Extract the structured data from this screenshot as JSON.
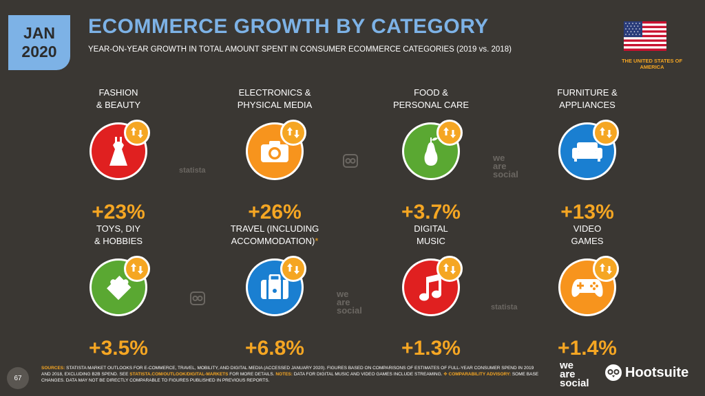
{
  "header": {
    "month": "JAN",
    "year": "2020",
    "title": "ECOMMERCE GROWTH BY CATEGORY",
    "subtitle": "YEAR-ON-YEAR GROWTH IN TOTAL AMOUNT SPENT IN CONSUMER ECOMMERCE CATEGORIES (2019 vs. 2018)",
    "country_line1": "THE UNITED STATES OF",
    "country_line2": "AMERICA"
  },
  "categories": [
    {
      "line1": "FASHION",
      "line2": "& BEAUTY",
      "value": "+23%",
      "icon": "dress-icon",
      "color": "#e02020"
    },
    {
      "line1": "ELECTRONICS &",
      "line2": "PHYSICAL MEDIA",
      "value": "+26%",
      "icon": "camera-icon",
      "color": "#f7941d"
    },
    {
      "line1": "FOOD &",
      "line2": "PERSONAL CARE",
      "value": "+3.7%",
      "icon": "pear-icon",
      "color": "#5aa832"
    },
    {
      "line1": "FURNITURE &",
      "line2": "APPLIANCES",
      "value": "+13%",
      "icon": "sofa-icon",
      "color": "#1a7fd1"
    },
    {
      "line1": "TOYS, DIY",
      "line2": "& HOBBIES",
      "value": "+3.5%",
      "icon": "puzzle-icon",
      "color": "#5aa832"
    },
    {
      "line1": "TRAVEL (INCLUDING",
      "line2": "ACCOMMODATION)",
      "star": "*",
      "value": "+6.8%",
      "icon": "luggage-icon",
      "color": "#1a7fd1"
    },
    {
      "line1": "DIGITAL",
      "line2": "MUSIC",
      "value": "+1.3%",
      "icon": "music-note-icon",
      "color": "#e02020"
    },
    {
      "line1": "VIDEO",
      "line2": "GAMES",
      "value": "+1.4%",
      "icon": "gamepad-icon",
      "color": "#f7941d"
    }
  ],
  "watermarks": {
    "statista": "statista",
    "we": "we",
    "are": "are",
    "social": "social"
  },
  "footer": {
    "page": "67",
    "sources_label": "SOURCES:",
    "sources_text": " STATISTA MARKET OUTLOOKS FOR E-COMMERCE, TRAVEL, MOBILITY, AND DIGITAL MEDIA (ACCESSED JANUARY 2020). FIGURES BASED ON COMPARISONS OF ESTIMATES OF FULL-YEAR CONSUMER SPEND IN 2019 AND 2018, EXCLUDING B2B SPEND. SEE ",
    "link": "STATISTA.COM/OUTLOOK/DIGITAL-MARKETS",
    "text2": " FOR MORE DETAILS. ",
    "notes_label": "NOTES:",
    "notes_text": " DATA FOR DIGITAL MUSIC AND VIDEO GAMES INCLUDE STREAMING. ",
    "advisory_label": "✥ COMPARABILITY ADVISORY:",
    "advisory_text": " SOME BASE CHANGES. DATA MAY NOT BE DIRECTLY COMPARABLE TO FIGURES PUBLISHED IN PREVIOUS REPORTS.",
    "brand_we": "we",
    "brand_are": "are",
    "brand_social": "social",
    "brand_hootsuite": "Hootsuite"
  }
}
